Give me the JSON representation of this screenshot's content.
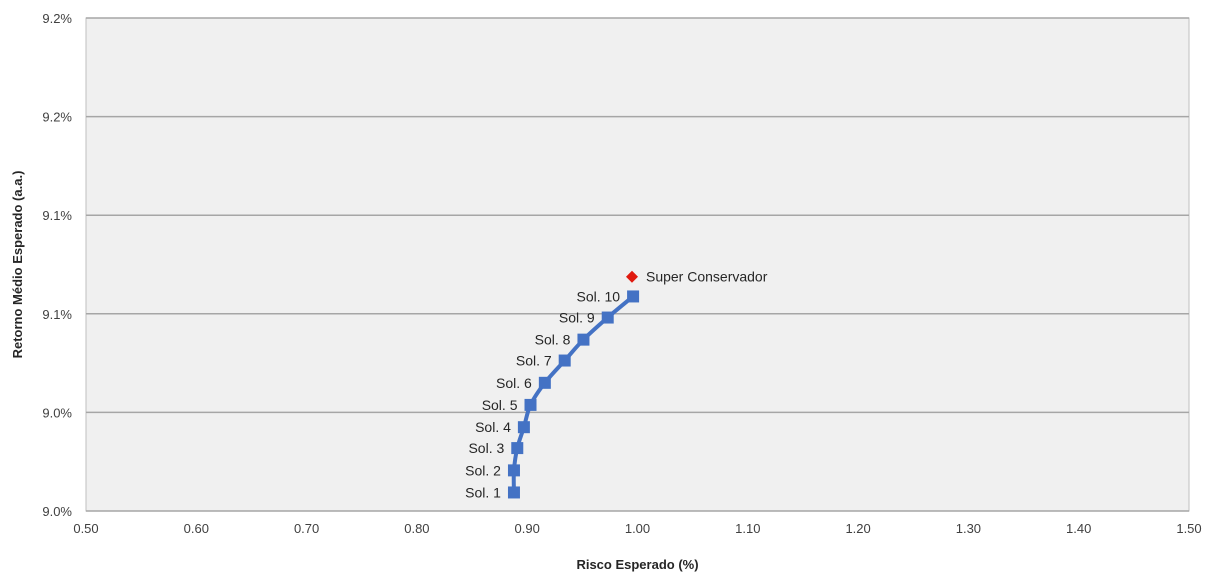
{
  "chart_data": {
    "type": "line",
    "xlabel": "Risco Esperado (%)",
    "ylabel": "Retorno Médio Esperado (a.a.)",
    "xlim": [
      0.5,
      1.5
    ],
    "ylim": [
      9.0,
      9.25
    ],
    "x_ticks": [
      0.5,
      0.6,
      0.7,
      0.8,
      0.9,
      1.0,
      1.1,
      1.2,
      1.3,
      1.4,
      1.5
    ],
    "x_tick_labels": [
      "0.50",
      "0.60",
      "0.70",
      "0.80",
      "0.90",
      "1.00",
      "1.10",
      "1.20",
      "1.30",
      "1.40",
      "1.50"
    ],
    "y_ticks": [
      9.0,
      9.05,
      9.1,
      9.15,
      9.2,
      9.25
    ],
    "y_tick_labels": [
      "9.0%",
      "9.0%",
      "9.1%",
      "9.1%",
      "9.2%",
      "9.2%"
    ],
    "grid": "horizontal",
    "series": [
      {
        "color": "#4472c4",
        "marker": "square",
        "points": [
          {
            "label": "Sol. 1",
            "x": 0.888,
            "y": 9.0094
          },
          {
            "label": "Sol. 2",
            "x": 0.888,
            "y": 9.0206
          },
          {
            "label": "Sol. 3",
            "x": 0.891,
            "y": 9.0319
          },
          {
            "label": "Sol. 4",
            "x": 0.897,
            "y": 9.0425
          },
          {
            "label": "Sol. 5",
            "x": 0.903,
            "y": 9.0538
          },
          {
            "label": "Sol. 6",
            "x": 0.916,
            "y": 9.065
          },
          {
            "label": "Sol. 7",
            "x": 0.934,
            "y": 9.0763
          },
          {
            "label": "Sol. 8",
            "x": 0.951,
            "y": 9.0869
          },
          {
            "label": "Sol. 9",
            "x": 0.973,
            "y": 9.0981
          },
          {
            "label": "Sol. 10",
            "x": 0.996,
            "y": 9.1088
          }
        ]
      }
    ],
    "highlight": {
      "label": "Super Conservador",
      "x": 0.995,
      "y": 9.1188,
      "color": "#e0190e",
      "marker": "diamond"
    },
    "plot_background": "#f0f0f0",
    "gridline_color": "#a6a6a6"
  }
}
